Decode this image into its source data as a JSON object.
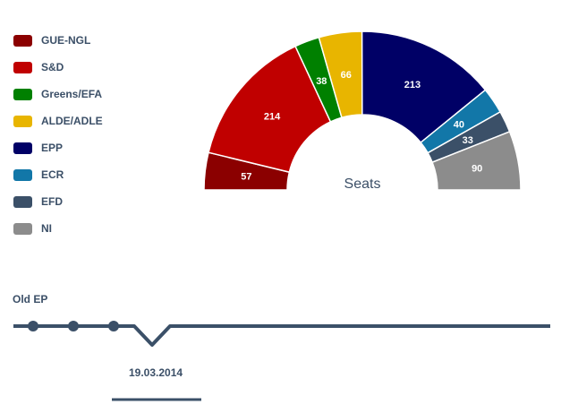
{
  "chart_data": {
    "type": "pie",
    "subtype": "semicircle-parliament",
    "center_label": "Seats",
    "series": [
      {
        "name": "GUE-NGL",
        "value": 57,
        "color": "#8b0000"
      },
      {
        "name": "S&D",
        "value": 214,
        "color": "#c00000"
      },
      {
        "name": "Greens/EFA",
        "value": 38,
        "color": "#008000"
      },
      {
        "name": "ALDE/ADLE",
        "value": 66,
        "color": "#e8b500"
      },
      {
        "name": "EPP",
        "value": 213,
        "color": "#000066"
      },
      {
        "name": "ECR",
        "value": 40,
        "color": "#1277a8"
      },
      {
        "name": "EFD",
        "value": 33,
        "color": "#3b5068"
      },
      {
        "name": "NI",
        "value": 90,
        "color": "#8c8c8c"
      }
    ],
    "legend_position": "top-left"
  },
  "timeline": {
    "label": "Old EP",
    "selected_date": "19.03.2014",
    "color": "#3b5068"
  }
}
